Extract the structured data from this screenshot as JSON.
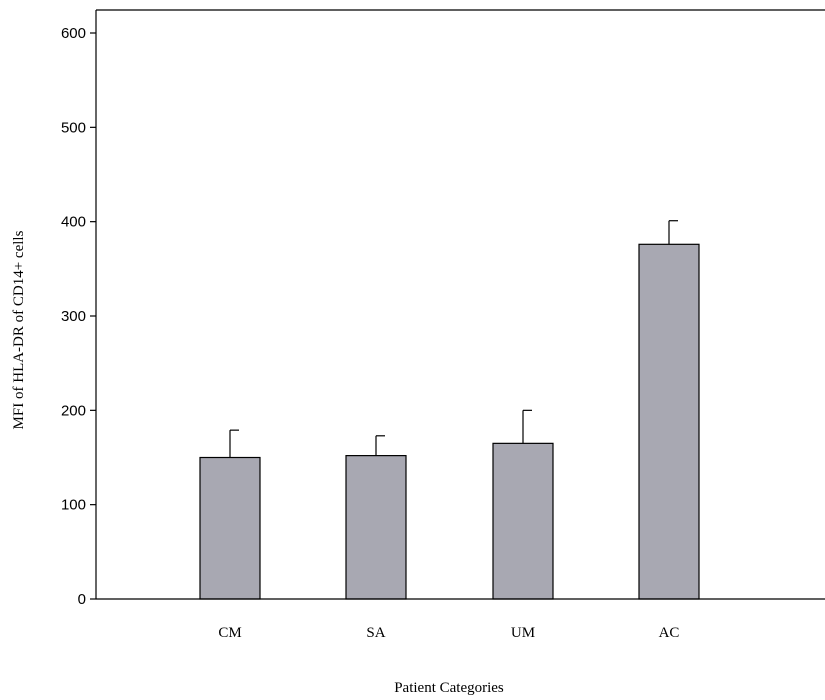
{
  "chart_data": {
    "type": "bar",
    "title": "",
    "xlabel": "Patient Categories",
    "ylabel": "MFI of HLA-DR of CD14+ cells",
    "categories": [
      "CM",
      "SA",
      "UM",
      "AC"
    ],
    "values": [
      150,
      152,
      165,
      376
    ],
    "error_upper": [
      179,
      173,
      200,
      401
    ],
    "ylim": [
      0,
      600
    ],
    "yticks": [
      0,
      100,
      200,
      300,
      400,
      500,
      600
    ],
    "grid": false,
    "legend": "none",
    "colors": {
      "bar_fill": "#a8a8b2",
      "bar_stroke": "#000000",
      "axis": "#000000"
    }
  }
}
